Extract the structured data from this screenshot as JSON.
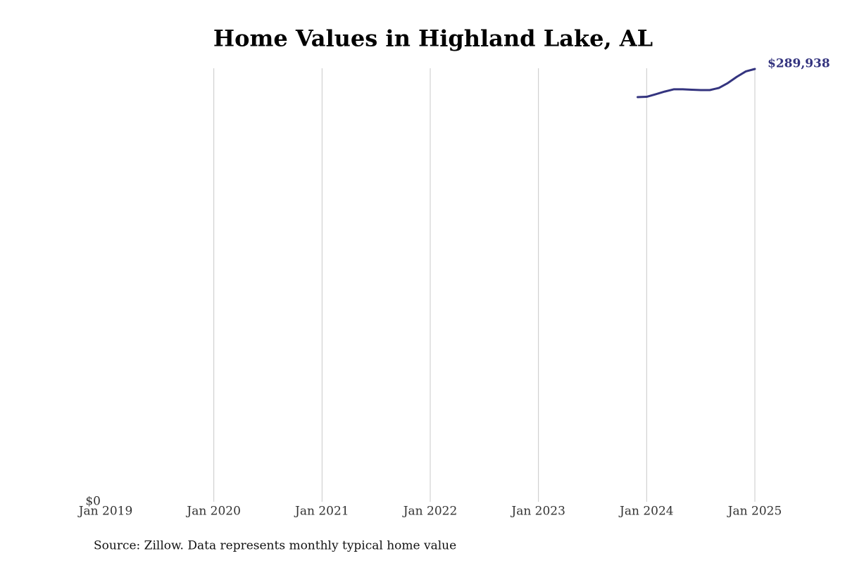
{
  "chart_data": {
    "type": "line",
    "title": "Home Values in Highland Lake, AL",
    "source": "Source: Zillow. Data represents monthly typical home value",
    "x": [
      "2023-12",
      "2024-01",
      "2024-02",
      "2024-03",
      "2024-04",
      "2024-05",
      "2024-06",
      "2024-07",
      "2024-08",
      "2024-09",
      "2024-10",
      "2024-11",
      "2024-12",
      "2025-01"
    ],
    "series": [
      {
        "color": "#34347f",
        "values": [
          271100,
          271300,
          273000,
          274800,
          276300,
          276300,
          276000,
          275800,
          275800,
          277200,
          280500,
          284700,
          288300,
          289938
        ],
        "value_labels": [
          null,
          null,
          null,
          null,
          null,
          null,
          null,
          null,
          null,
          null,
          null,
          null,
          null,
          "$289,938"
        ]
      }
    ],
    "xlim": [
      "2019-01",
      "2025-01"
    ],
    "xticks": [
      {
        "value": "2019-01",
        "label": "Jan 2019"
      },
      {
        "value": "2020-01",
        "label": "Jan 2020"
      },
      {
        "value": "2021-01",
        "label": "Jan 2021"
      },
      {
        "value": "2022-01",
        "label": "Jan 2022"
      },
      {
        "value": "2023-01",
        "label": "Jan 2023"
      },
      {
        "value": "2024-01",
        "label": "Jan 2024"
      },
      {
        "value": "2025-01",
        "label": "Jan 2025"
      }
    ],
    "ylim": [
      0,
      289938
    ],
    "yticks": [
      {
        "value": 0,
        "label": "$0"
      }
    ],
    "grid": true
  }
}
